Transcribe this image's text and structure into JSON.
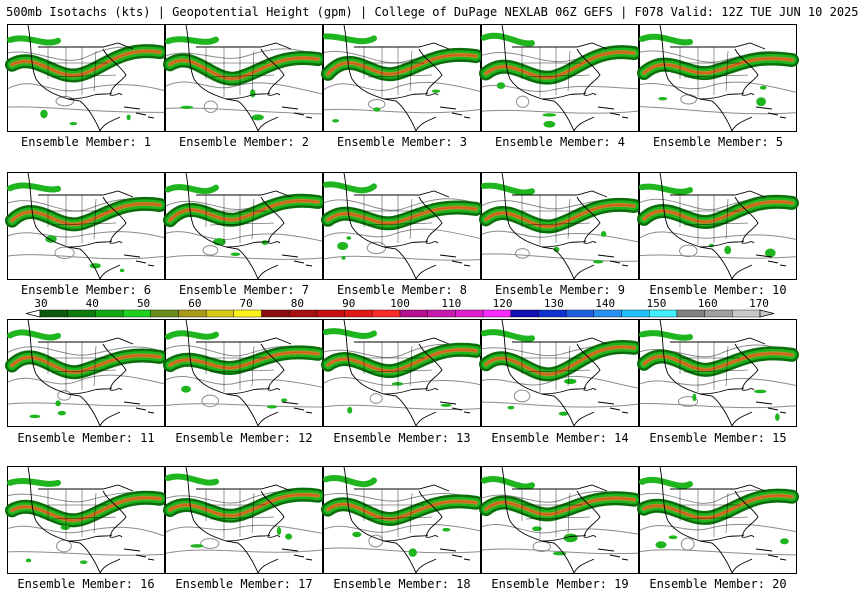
{
  "title": "500mb Isotachs (kts) | Geopotential Height (gpm) | College of DuPage NEXLAB   06Z GEFS | F078 Valid: 12Z TUE JUN 10 2025",
  "panel_label_prefix": "Ensemble Member: ",
  "panels": [
    {
      "member": "1"
    },
    {
      "member": "2"
    },
    {
      "member": "3"
    },
    {
      "member": "4"
    },
    {
      "member": "5"
    },
    {
      "member": "6"
    },
    {
      "member": "7"
    },
    {
      "member": "8"
    },
    {
      "member": "9"
    },
    {
      "member": "10"
    },
    {
      "member": "11"
    },
    {
      "member": "12"
    },
    {
      "member": "13"
    },
    {
      "member": "14"
    },
    {
      "member": "15"
    },
    {
      "member": "16"
    },
    {
      "member": "17"
    },
    {
      "member": "18"
    },
    {
      "member": "19"
    },
    {
      "member": "20"
    }
  ],
  "colorbar": {
    "labels": [
      "30",
      "40",
      "50",
      "60",
      "70",
      "80",
      "90",
      "100",
      "110",
      "120",
      "130",
      "140",
      "150",
      "160",
      "170"
    ],
    "colors": [
      "#0a5a0a",
      "#0c7a0c",
      "#13a813",
      "#1fd11f",
      "#6a8a1a",
      "#a89a1a",
      "#d8c81a",
      "#fff21a",
      "#8a1010",
      "#a81010",
      "#c41010",
      "#e01818",
      "#ff2a2a",
      "#b41090",
      "#c81ab0",
      "#e01ed0",
      "#ff2aff",
      "#1010b4",
      "#1030d0",
      "#2060e0",
      "#2a90f0",
      "#20c0ff",
      "#40f0ff",
      "#808080",
      "#a0a0a0",
      "#c8c8c8"
    ]
  },
  "map_colors": {
    "jet_dark": "#0b6e0b",
    "jet_mid": "#1fb51f",
    "jet_core": "#b88a2a",
    "jet_max": "#d85a1a",
    "height": "#8c8c8c",
    "border": "#000000"
  }
}
